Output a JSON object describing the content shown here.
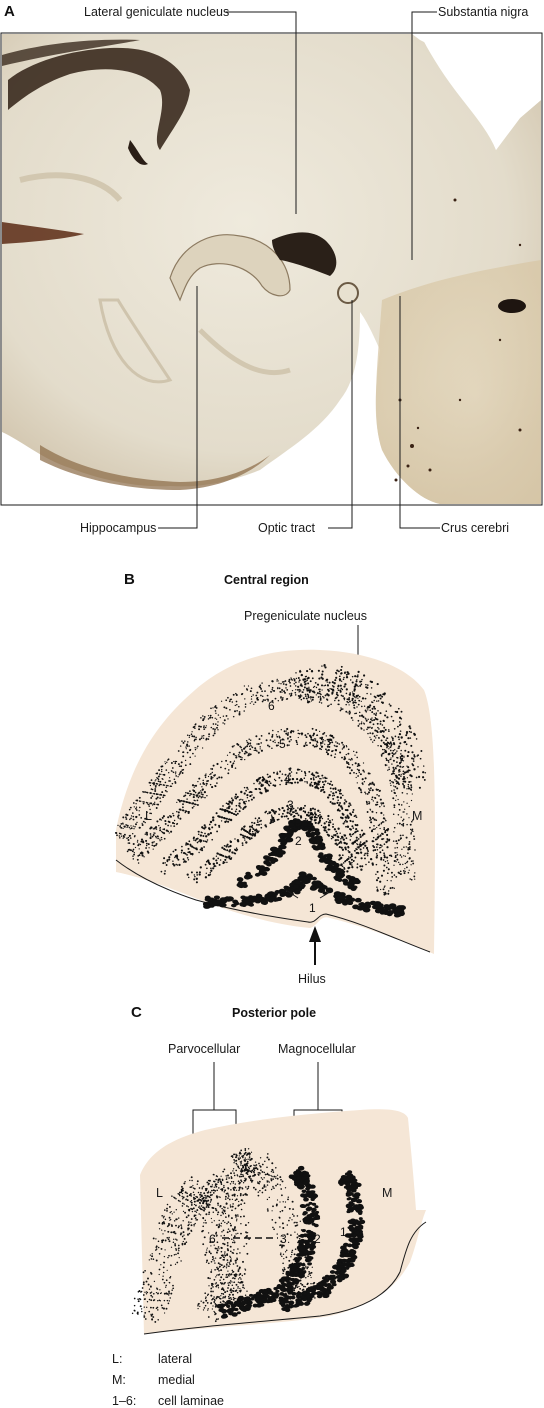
{
  "panel_a": {
    "letter": "A",
    "labels": {
      "lgn": "Lateral geniculate nucleus",
      "substantia_nigra": "Substantia nigra",
      "hippocampus": "Hippocampus",
      "optic_tract": "Optic tract",
      "crus_cerebri": "Crus cerebri"
    }
  },
  "panel_b": {
    "letter": "B",
    "title": "Central region",
    "pregeniculate": "Pregeniculate nucleus",
    "lateral": "L",
    "medial": "M",
    "hilus": "Hilus",
    "layers": [
      "1",
      "2",
      "3",
      "4",
      "5",
      "6"
    ]
  },
  "panel_c": {
    "letter": "C",
    "title": "Posterior pole",
    "parvocellular": "Parvocellular",
    "magnocellular": "Magnocellular",
    "lateral": "L",
    "medial": "M",
    "layers": [
      "1",
      "2",
      "3",
      "6"
    ]
  },
  "legend": [
    {
      "key": "L:",
      "text": "lateral"
    },
    {
      "key": "M:",
      "text": "medial"
    },
    {
      "key": "1–6:",
      "text": "cell laminae"
    }
  ],
  "colors": {
    "tissue_bg": "#f5e6d6",
    "photo_matter": "#e8e2d4",
    "photo_dark": "#3a2a1e"
  }
}
